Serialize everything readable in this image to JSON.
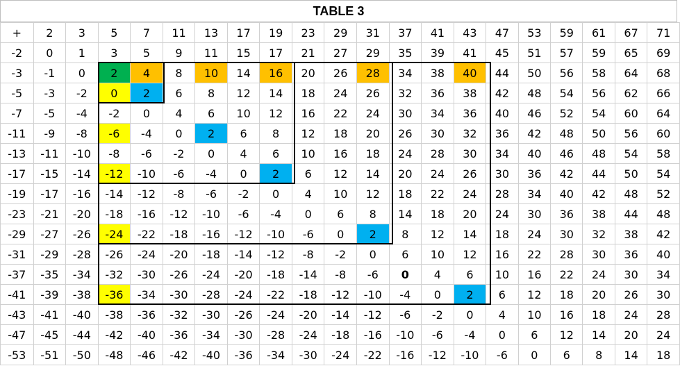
{
  "title": "TABLE 3",
  "header": [
    "+",
    "2",
    "3",
    "5",
    "7",
    "11",
    "13",
    "17",
    "19",
    "23",
    "29",
    "31",
    "37",
    "41",
    "43",
    "47",
    "53",
    "59",
    "61",
    "67",
    "71"
  ],
  "rows": [
    [
      "-2",
      "0",
      "1",
      "3",
      "5",
      "9",
      "11",
      "15",
      "17",
      "21",
      "27",
      "29",
      "35",
      "39",
      "41",
      "45",
      "51",
      "57",
      "59",
      "65",
      "69"
    ],
    [
      "-3",
      "-1",
      "0",
      "2",
      "4",
      "8",
      "10",
      "14",
      "16",
      "20",
      "26",
      "28",
      "34",
      "38",
      "40",
      "44",
      "50",
      "56",
      "58",
      "64",
      "68"
    ],
    [
      "-5",
      "-3",
      "-2",
      "0",
      "2",
      "6",
      "8",
      "12",
      "14",
      "18",
      "24",
      "26",
      "32",
      "36",
      "38",
      "42",
      "48",
      "54",
      "56",
      "62",
      "66"
    ],
    [
      "-7",
      "-5",
      "-4",
      "-2",
      "0",
      "4",
      "6",
      "10",
      "12",
      "16",
      "22",
      "24",
      "30",
      "34",
      "36",
      "40",
      "46",
      "52",
      "54",
      "60",
      "64"
    ],
    [
      "-11",
      "-9",
      "-8",
      "-6",
      "-4",
      "0",
      "2",
      "6",
      "8",
      "12",
      "18",
      "20",
      "26",
      "30",
      "32",
      "36",
      "42",
      "48",
      "50",
      "56",
      "60"
    ],
    [
      "-13",
      "-11",
      "-10",
      "-8",
      "-6",
      "-2",
      "0",
      "4",
      "6",
      "10",
      "16",
      "18",
      "24",
      "28",
      "30",
      "34",
      "40",
      "46",
      "48",
      "54",
      "58"
    ],
    [
      "-17",
      "-15",
      "-14",
      "-12",
      "-10",
      "-6",
      "-4",
      "0",
      "2",
      "6",
      "12",
      "14",
      "20",
      "24",
      "26",
      "30",
      "36",
      "42",
      "44",
      "50",
      "54"
    ],
    [
      "-19",
      "-17",
      "-16",
      "-14",
      "-12",
      "-8",
      "-6",
      "-2",
      "0",
      "4",
      "10",
      "12",
      "18",
      "22",
      "24",
      "28",
      "34",
      "40",
      "42",
      "48",
      "52"
    ],
    [
      "-23",
      "-21",
      "-20",
      "-18",
      "-16",
      "-12",
      "-10",
      "-6",
      "-4",
      "0",
      "6",
      "8",
      "14",
      "18",
      "20",
      "24",
      "30",
      "36",
      "38",
      "44",
      "48"
    ],
    [
      "-29",
      "-27",
      "-26",
      "-24",
      "-22",
      "-18",
      "-16",
      "-12",
      "-10",
      "-6",
      "0",
      "2",
      "8",
      "12",
      "14",
      "18",
      "24",
      "30",
      "32",
      "38",
      "42"
    ],
    [
      "-31",
      "-29",
      "-28",
      "-26",
      "-24",
      "-20",
      "-18",
      "-14",
      "-12",
      "-8",
      "-2",
      "0",
      "6",
      "10",
      "12",
      "16",
      "22",
      "28",
      "30",
      "36",
      "40"
    ],
    [
      "-37",
      "-35",
      "-34",
      "-32",
      "-30",
      "-26",
      "-24",
      "-20",
      "-18",
      "-14",
      "-8",
      "-6",
      "0",
      "4",
      "6",
      "10",
      "16",
      "22",
      "24",
      "30",
      "34"
    ],
    [
      "-41",
      "-39",
      "-38",
      "-36",
      "-34",
      "-30",
      "-28",
      "-24",
      "-22",
      "-18",
      "-12",
      "-10",
      "-4",
      "0",
      "2",
      "6",
      "12",
      "18",
      "20",
      "26",
      "30"
    ],
    [
      "-43",
      "-41",
      "-40",
      "-38",
      "-36",
      "-32",
      "-30",
      "-26",
      "-24",
      "-20",
      "-14",
      "-12",
      "-6",
      "-2",
      "0",
      "4",
      "10",
      "16",
      "18",
      "24",
      "28"
    ],
    [
      "-47",
      "-45",
      "-44",
      "-42",
      "-40",
      "-36",
      "-34",
      "-30",
      "-28",
      "-24",
      "-18",
      "-16",
      "-10",
      "-6",
      "-4",
      "0",
      "6",
      "12",
      "14",
      "20",
      "24"
    ],
    [
      "-53",
      "-51",
      "-50",
      "-48",
      "-46",
      "-42",
      "-40",
      "-36",
      "-34",
      "-30",
      "-24",
      "-22",
      "-16",
      "-12",
      "-10",
      "-6",
      "0",
      "6",
      "8",
      "14",
      "18"
    ]
  ],
  "colors": {
    "green": "#00b050",
    "orange": "#ffc000",
    "yellow": "#ffff00",
    "blue": "#00b0f0"
  },
  "highlights": [
    {
      "row": 1,
      "col": 3,
      "color": "green"
    },
    {
      "row": 1,
      "col": 4,
      "color": "orange"
    },
    {
      "row": 1,
      "col": 6,
      "color": "orange"
    },
    {
      "row": 1,
      "col": 8,
      "color": "orange"
    },
    {
      "row": 1,
      "col": 11,
      "color": "orange"
    },
    {
      "row": 1,
      "col": 14,
      "color": "orange"
    },
    {
      "row": 2,
      "col": 3,
      "color": "yellow"
    },
    {
      "row": 2,
      "col": 4,
      "color": "blue"
    },
    {
      "row": 4,
      "col": 3,
      "color": "yellow"
    },
    {
      "row": 4,
      "col": 6,
      "color": "blue"
    },
    {
      "row": 6,
      "col": 3,
      "color": "yellow"
    },
    {
      "row": 6,
      "col": 8,
      "color": "blue"
    },
    {
      "row": 9,
      "col": 3,
      "color": "yellow"
    },
    {
      "row": 9,
      "col": 11,
      "color": "blue"
    },
    {
      "row": 12,
      "col": 3,
      "color": "yellow"
    },
    {
      "row": 12,
      "col": 14,
      "color": "blue"
    }
  ],
  "bold_cells": [
    {
      "row": 11,
      "col": 12
    }
  ],
  "outlined_blocks": [
    {
      "rows": [
        1,
        2
      ],
      "cols": [
        3,
        4
      ]
    },
    {
      "rows": [
        1,
        6
      ],
      "cols": [
        3,
        8
      ]
    },
    {
      "rows": [
        1,
        9
      ],
      "cols": [
        3,
        11
      ]
    },
    {
      "rows": [
        1,
        12
      ],
      "cols": [
        3,
        14
      ]
    }
  ]
}
